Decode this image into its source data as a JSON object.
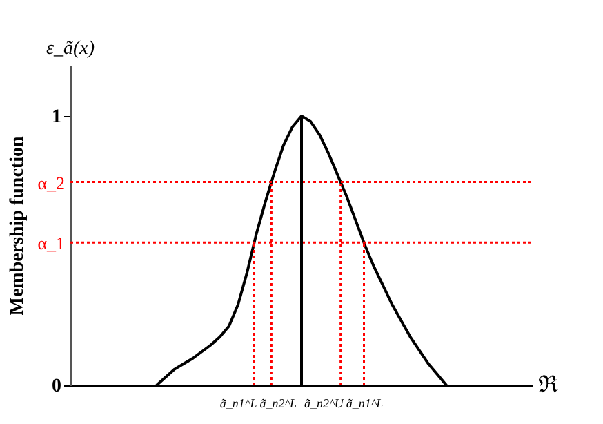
{
  "chart_data": {
    "type": "line",
    "title": "ε_ã(x)",
    "ylabel": "Membership function",
    "annotations": [
      "ã_n1^L",
      "ã_n2^L",
      "ã_n2^U",
      "ã_n1^L",
      "ℜ"
    ],
    "categories": [
      null,
      null,
      null,
      null,
      null,
      null,
      null,
      null,
      null,
      null,
      null,
      null,
      null,
      null,
      null,
      null,
      null,
      null,
      null,
      null,
      null,
      null,
      null,
      null,
      null,
      null,
      null,
      null,
      null,
      null,
      null,
      null,
      null,
      null,
      null,
      null,
      null,
      null,
      null,
      null,
      null,
      null,
      null,
      null,
      null,
      null,
      null,
      null,
      null,
      null,
      null
    ],
    "ylim": [
      0,
      1.19
    ],
    "yticks": [
      0,
      1
    ],
    "grid": false,
    "marker": "none",
    "ref_lines": [
      {
        "axis": "y",
        "value": 0.53,
        "label": "α_1",
        "color": "#ff0000",
        "line_style": "dotted"
      },
      {
        "axis": "y",
        "value": 0.755,
        "label": "α_2",
        "color": "#ff0000",
        "line_style": "dotted"
      }
    ],
    "series": [
      {
        "color": "#000000",
        "line_style": "solid",
        "values": [
          null,
          null,
          null,
          null,
          null,
          null,
          null,
          null,
          null,
          0,
          0.03,
          0.06,
          0.08,
          0.1,
          0.125,
          0.15,
          0.18,
          0.22,
          0.3,
          0.42,
          0.56,
          0.68,
          0.79,
          0.89,
          0.96,
          1,
          0.98,
          0.93,
          0.86,
          0.78,
          0.7,
          0.61,
          0.52,
          0.44,
          0.37,
          0.3,
          0.24,
          0.18,
          0.13,
          0.08,
          0.04,
          0,
          null,
          null,
          null,
          null,
          null,
          null,
          null,
          null,
          null
        ]
      }
    ]
  }
}
